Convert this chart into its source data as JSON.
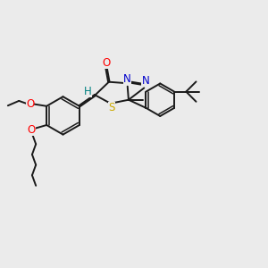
{
  "background_color": "#ebebeb",
  "bond_color": "#1a1a1a",
  "atom_colors": {
    "O": "#ff0000",
    "N": "#0000cc",
    "S": "#ccaa00",
    "H_label": "#008080"
  },
  "lw": 1.4,
  "lw_inner": 1.1
}
